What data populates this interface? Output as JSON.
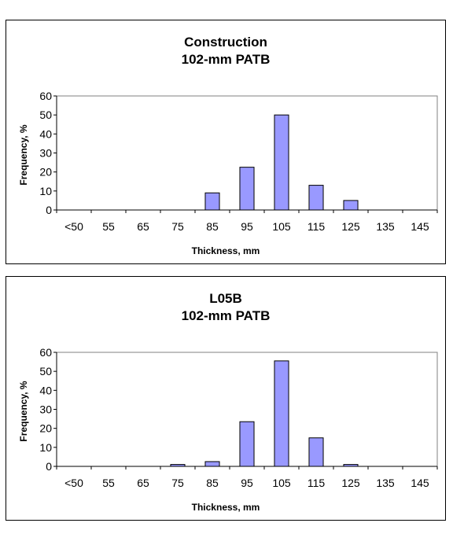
{
  "chart_data": [
    {
      "type": "bar",
      "title_lines": [
        "Construction",
        "102-mm PATB"
      ],
      "xlabel": "Thickness, mm",
      "ylabel": "Frequency, %",
      "categories": [
        "<50",
        "55",
        "65",
        "75",
        "85",
        "95",
        "105",
        "115",
        "125",
        "135",
        "145"
      ],
      "values": [
        0,
        0,
        0,
        0,
        9,
        22.5,
        50,
        13,
        5,
        0,
        0
      ],
      "ylim": [
        0,
        60
      ],
      "yticks": [
        0,
        10,
        20,
        30,
        40,
        50,
        60
      ],
      "grid": false,
      "legend": "none",
      "colors": {
        "bar_fill": "#9999ff",
        "bar_stroke": "#000000"
      }
    },
    {
      "type": "bar",
      "title_lines": [
        "L05B",
        "102-mm PATB"
      ],
      "xlabel": "Thickness, mm",
      "ylabel": "Frequency, %",
      "categories": [
        "<50",
        "55",
        "65",
        "75",
        "85",
        "95",
        "105",
        "115",
        "125",
        "135",
        "145"
      ],
      "values": [
        0,
        0,
        0,
        1,
        2.5,
        23.5,
        55.5,
        15,
        1,
        0,
        0
      ],
      "ylim": [
        0,
        60
      ],
      "yticks": [
        0,
        10,
        20,
        30,
        40,
        50,
        60
      ],
      "grid": false,
      "legend": "none",
      "colors": {
        "bar_fill": "#9999ff",
        "bar_stroke": "#000000"
      }
    }
  ]
}
